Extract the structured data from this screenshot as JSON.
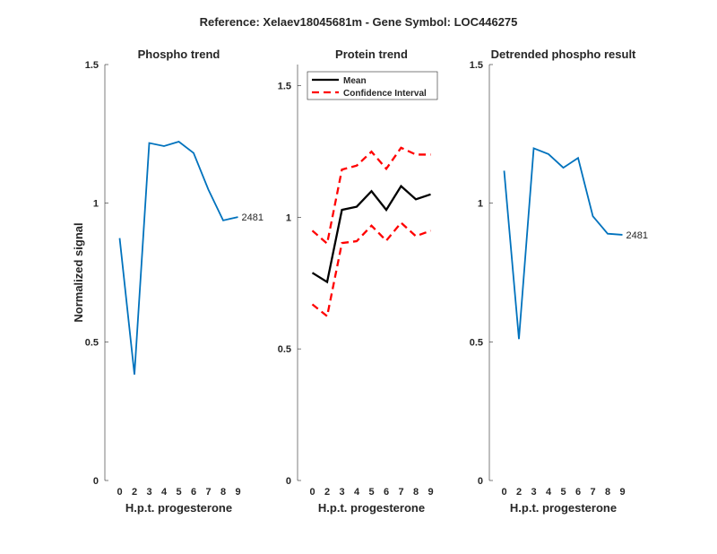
{
  "suptitle": "Reference:  Xelaev18045681m - Gene Symbol:  LOC446275",
  "chart_data": [
    {
      "type": "line",
      "title": "Phospho trend",
      "xlabel": "H.p.t. progesterone",
      "ylabel": "Normalized signal",
      "x_positions": [
        1,
        2,
        3,
        4,
        5,
        6,
        7,
        8,
        9
      ],
      "xtick_labels": [
        "0",
        "2",
        "3",
        "4",
        "5",
        "6",
        "7",
        "8",
        "9"
      ],
      "xlim": [
        0,
        10
      ],
      "ylim": [
        0,
        1.5
      ],
      "yticks": [
        0,
        0.5,
        1,
        1.5
      ],
      "ytick_labels": [
        "0",
        "0.5",
        "1",
        "1.5"
      ],
      "series": [
        {
          "name": "2481",
          "color": "#0072BD",
          "values": [
            0.874,
            0.382,
            1.217,
            1.206,
            1.222,
            1.181,
            1.049,
            0.938,
            0.95
          ]
        }
      ],
      "annotation": "2481"
    },
    {
      "type": "line",
      "title": "Protein trend",
      "xlabel": "H.p.t. progesterone",
      "ylabel": "",
      "x_positions": [
        1,
        2,
        3,
        4,
        5,
        6,
        7,
        8,
        9
      ],
      "xtick_labels": [
        "0",
        "2",
        "3",
        "4",
        "5",
        "6",
        "7",
        "8",
        "9"
      ],
      "xlim": [
        0,
        10
      ],
      "ylim": [
        0,
        1.58
      ],
      "yticks": [
        0,
        0.5,
        1,
        1.5
      ],
      "ytick_labels": [
        "0",
        "0.5",
        "1",
        "1.5"
      ],
      "legend": {
        "placement": "top-left",
        "entries": [
          "Mean",
          "Confidence Interval"
        ]
      },
      "series": [
        {
          "name": "Mean",
          "color": "#000000",
          "style": "solid",
          "values": [
            0.789,
            0.754,
            1.028,
            1.04,
            1.099,
            1.028,
            1.118,
            1.068,
            1.087
          ]
        },
        {
          "name": "Confidence Interval",
          "color": "#FF0000",
          "style": "dashed",
          "values": [
            0.949,
            0.9,
            1.181,
            1.196,
            1.249,
            1.184,
            1.264,
            1.238,
            1.238
          ]
        },
        {
          "name": "Confidence Interval (lower)",
          "color": "#FF0000",
          "style": "dashed",
          "values": [
            0.669,
            0.624,
            0.902,
            0.909,
            0.968,
            0.911,
            0.979,
            0.928,
            0.949
          ]
        }
      ]
    },
    {
      "type": "line",
      "title": "Detrended phospho result",
      "xlabel": "H.p.t. progesterone",
      "ylabel": "",
      "x_positions": [
        1,
        2,
        3,
        4,
        5,
        6,
        7,
        8,
        9
      ],
      "xtick_labels": [
        "0",
        "2",
        "3",
        "4",
        "5",
        "6",
        "7",
        "8",
        "9"
      ],
      "xlim": [
        0,
        10
      ],
      "ylim": [
        0,
        1.5
      ],
      "yticks": [
        0,
        0.5,
        1,
        1.5
      ],
      "ytick_labels": [
        "0",
        "0.5",
        "1",
        "1.5"
      ],
      "series": [
        {
          "name": "2481",
          "color": "#0072BD",
          "values": [
            1.117,
            0.51,
            1.198,
            1.177,
            1.128,
            1.163,
            0.953,
            0.89,
            0.886
          ]
        }
      ],
      "annotation": "2481"
    }
  ]
}
